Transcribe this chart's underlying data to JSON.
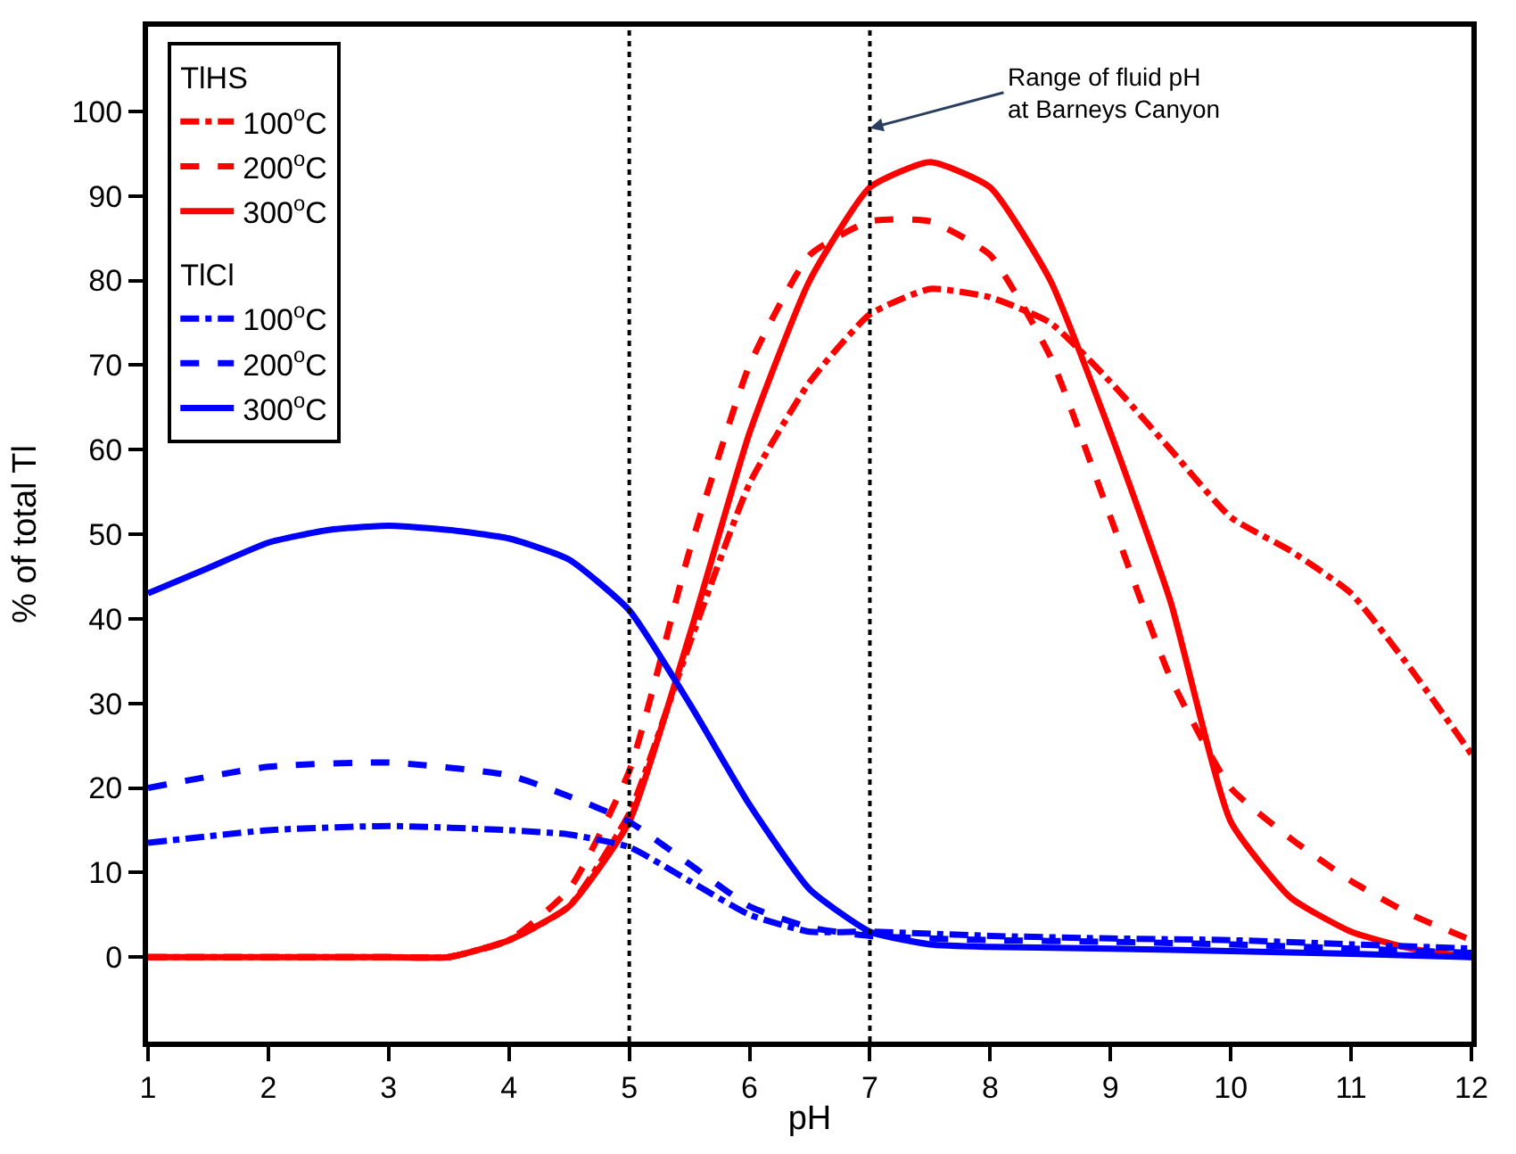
{
  "chart_data": {
    "type": "line",
    "xlabel": "pH",
    "ylabel": "% of total Tl",
    "xlim": [
      1,
      12
    ],
    "xticks": [
      1,
      2,
      3,
      4,
      5,
      6,
      7,
      8,
      9,
      10,
      11,
      12
    ],
    "ylim": [
      -10,
      110
    ],
    "yticks": [
      0,
      10,
      20,
      30,
      40,
      50,
      60,
      70,
      80,
      90,
      100
    ],
    "legend": "top left",
    "marker": "none",
    "series": [
      {
        "name": "100$^{o}$C",
        "color": "#ff0000",
        "line_style": "dashdot",
        "x": [
          1,
          2,
          3,
          3.5,
          4,
          4.5,
          5,
          5.5,
          6,
          6.5,
          7,
          7.5,
          8,
          8.5,
          9,
          9.5,
          10,
          10.5,
          11,
          11.5,
          12
        ],
        "values": [
          0,
          0,
          0,
          0,
          2,
          6,
          17,
          37,
          56,
          68,
          76,
          79,
          78,
          75,
          68,
          60,
          52,
          48,
          43,
          34,
          24
        ]
      },
      {
        "name": "200$^{o}$C",
        "color": "#ff0000",
        "line_style": "dashed",
        "x": [
          1,
          2,
          3,
          3.5,
          4,
          4.5,
          5,
          5.5,
          6,
          6.5,
          7,
          7.5,
          8,
          8.5,
          9,
          9.5,
          10,
          10.5,
          11,
          11.5,
          12
        ],
        "values": [
          0,
          0,
          0,
          0,
          2,
          8,
          22,
          48,
          70,
          83,
          87,
          87,
          83,
          71,
          52,
          33,
          20,
          14,
          9,
          5,
          2
        ]
      },
      {
        "name": "300$^{o}$C",
        "color": "#ff0000",
        "line_style": "solid",
        "x": [
          1,
          2,
          3,
          3.5,
          4,
          4.5,
          5,
          5.5,
          6,
          6.5,
          7,
          7.5,
          8,
          8.5,
          9,
          9.5,
          10,
          10.5,
          11,
          11.5,
          12
        ],
        "values": [
          0,
          0,
          0,
          0,
          2,
          6,
          16,
          38,
          62,
          80,
          91,
          94,
          91,
          80,
          62,
          42,
          16,
          7,
          3,
          1,
          0
        ]
      },
      {
        "name": "100$^{o}$C",
        "color": "#0000ff",
        "line_style": "dashdot",
        "x": [
          1,
          2,
          3,
          4,
          4.5,
          5,
          5.5,
          6,
          6.5,
          7,
          8,
          9,
          10,
          11,
          12
        ],
        "values": [
          13.5,
          15,
          15.5,
          15,
          14.5,
          13,
          9,
          5,
          3,
          3,
          2.5,
          2.2,
          2,
          1.5,
          1
        ]
      },
      {
        "name": "200$^{o}$C",
        "color": "#0000ff",
        "line_style": "dashed",
        "x": [
          1,
          2,
          3,
          4,
          4.5,
          5,
          5.5,
          6,
          6.5,
          7,
          8,
          9,
          10,
          11,
          12
        ],
        "values": [
          20,
          22.5,
          23,
          21.5,
          19,
          16,
          11,
          6,
          3.5,
          2.5,
          2,
          1.8,
          1.5,
          1,
          0.5
        ]
      },
      {
        "name": "300$^{o}$C",
        "color": "#0000ff",
        "line_style": "solid",
        "x": [
          1,
          1.5,
          2,
          2.5,
          3,
          3.5,
          4,
          4.5,
          5,
          5.5,
          6,
          6.5,
          7,
          7.5,
          8,
          9,
          10,
          11,
          12
        ],
        "values": [
          43,
          46,
          49,
          50.5,
          51,
          50.5,
          49.5,
          47,
          41,
          30,
          18,
          8,
          3,
          1.5,
          1.2,
          1,
          0.7,
          0.4,
          0
        ]
      }
    ],
    "ref_lines": [
      {
        "axis": "x",
        "value": 5,
        "color": "#000000",
        "line_style": "dotted"
      },
      {
        "axis": "x",
        "value": 7,
        "color": "#000000",
        "line_style": "dotted"
      }
    ],
    "annotations": [
      "TlHS",
      "TlCl",
      {
        "text": "Range of fluid pH\nat Barneys Canyon",
        "x": 7,
        "y": 98
      }
    ]
  }
}
